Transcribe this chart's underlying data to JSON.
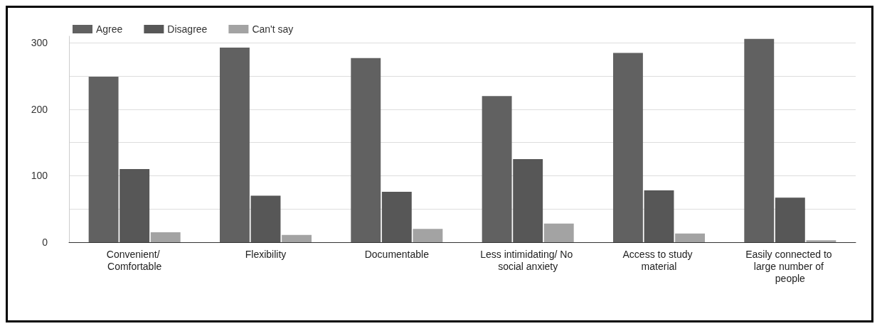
{
  "chart_data": {
    "type": "bar",
    "categories": [
      "Convenient/ Comfortable",
      "Flexibility",
      "Documentable",
      "Less intimidating/ No social anxiety",
      "Access to study material",
      "Easily connected to large number of people"
    ],
    "series": [
      {
        "name": "Agree",
        "color": "#616161",
        "values": [
          249,
          293,
          277,
          220,
          285,
          306
        ]
      },
      {
        "name": "Disagree",
        "color": "#575757",
        "values": [
          110,
          70,
          76,
          125,
          78,
          67
        ]
      },
      {
        "name": "Can't say",
        "color": "#a3a3a3",
        "values": [
          15,
          11,
          20,
          28,
          13,
          3
        ]
      }
    ],
    "ylim": [
      0,
      310
    ],
    "yticks": [
      0,
      {
        "value": 50,
        "label": null
      },
      100,
      {
        "value": 150,
        "label": null
      },
      200,
      {
        "value": 250,
        "label": null
      },
      300
    ],
    "grid": "y",
    "legend": "top left"
  }
}
